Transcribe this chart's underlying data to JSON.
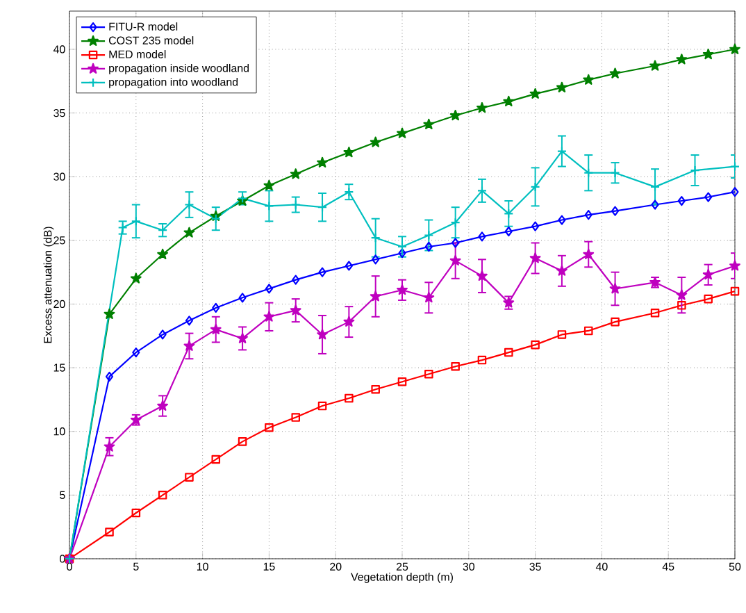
{
  "chart_data": {
    "type": "line",
    "xlabel": "Vegetation depth (m)",
    "ylabel": "Excess attenuation (dB)",
    "xlim": [
      0,
      50
    ],
    "ylim": [
      0,
      43
    ],
    "xticks": [
      0,
      5,
      10,
      15,
      20,
      25,
      30,
      35,
      40,
      45,
      50
    ],
    "yticks": [
      0,
      5,
      10,
      15,
      20,
      25,
      30,
      35,
      40
    ],
    "grid": true,
    "legend": "top left",
    "line_style": "solid",
    "x": [
      0,
      3,
      5,
      7,
      9,
      11,
      13,
      15,
      17,
      19,
      21,
      23,
      25,
      27,
      29,
      31,
      33,
      35,
      37,
      39,
      41,
      44,
      46,
      48,
      50
    ],
    "series": [
      {
        "name": "FITU-R model",
        "color": "#0000ff",
        "marker": "diamond",
        "values": [
          0,
          14.3,
          16.2,
          17.6,
          18.7,
          19.7,
          20.5,
          21.2,
          21.9,
          22.5,
          23.0,
          23.5,
          24.0,
          24.5,
          24.8,
          25.3,
          25.7,
          26.1,
          26.6,
          27.0,
          27.3,
          27.8,
          28.1,
          28.4,
          28.8
        ]
      },
      {
        "name": "COST 235 model",
        "color": "#008000",
        "marker": "star",
        "values": [
          0,
          19.2,
          22.0,
          23.9,
          25.6,
          26.9,
          28.1,
          29.3,
          30.2,
          31.1,
          31.9,
          32.7,
          33.4,
          34.1,
          34.8,
          35.4,
          35.9,
          36.5,
          37.0,
          37.6,
          38.1,
          38.7,
          39.2,
          39.6,
          40.0
        ]
      },
      {
        "name": "MED model",
        "color": "#ff0000",
        "marker": "square",
        "values": [
          0,
          2.1,
          3.6,
          5.0,
          6.4,
          7.8,
          9.2,
          10.3,
          11.1,
          12.0,
          12.6,
          13.3,
          13.9,
          14.5,
          15.1,
          15.6,
          16.2,
          16.8,
          17.6,
          17.9,
          18.6,
          19.3,
          19.9,
          20.4,
          21.0
        ]
      },
      {
        "name": "propagation inside woodland",
        "color": "#bf00bf",
        "marker": "star",
        "values": [
          0,
          8.8,
          10.9,
          12.0,
          16.7,
          18.0,
          17.3,
          19.0,
          19.5,
          17.6,
          18.6,
          20.6,
          21.1,
          20.5,
          23.4,
          22.2,
          20.1,
          23.6,
          22.6,
          23.9,
          21.2,
          21.7,
          20.7,
          22.3,
          23.0
        ],
        "errors": [
          null,
          0.7,
          0.4,
          0.8,
          1.0,
          1.0,
          0.9,
          1.1,
          0.9,
          1.5,
          1.2,
          1.6,
          0.8,
          1.2,
          1.4,
          1.3,
          0.5,
          1.2,
          1.2,
          1.0,
          1.3,
          0.4,
          1.4,
          0.8,
          1.0
        ]
      },
      {
        "name": "propagation into woodland",
        "color": "#00bfbf",
        "marker": "cross",
        "x": [
          0,
          4,
          5,
          7,
          9,
          11,
          13,
          15,
          17,
          19,
          21,
          23,
          25,
          27,
          29,
          31,
          33,
          35,
          37,
          39,
          41,
          44,
          47,
          50
        ],
        "values": [
          0,
          26.0,
          26.5,
          25.8,
          27.8,
          26.7,
          28.3,
          27.7,
          27.8,
          27.6,
          28.8,
          25.2,
          24.5,
          25.4,
          26.4,
          28.9,
          27.1,
          29.2,
          32.0,
          30.3,
          30.3,
          29.2,
          30.5,
          30.8
        ],
        "errors": [
          null,
          0.5,
          1.3,
          0.5,
          1.0,
          0.9,
          0.5,
          1.2,
          0.6,
          1.1,
          0.6,
          1.5,
          0.8,
          1.2,
          1.2,
          0.9,
          1.0,
          1.5,
          1.2,
          1.4,
          0.8,
          1.4,
          1.2,
          0.9
        ]
      }
    ]
  }
}
